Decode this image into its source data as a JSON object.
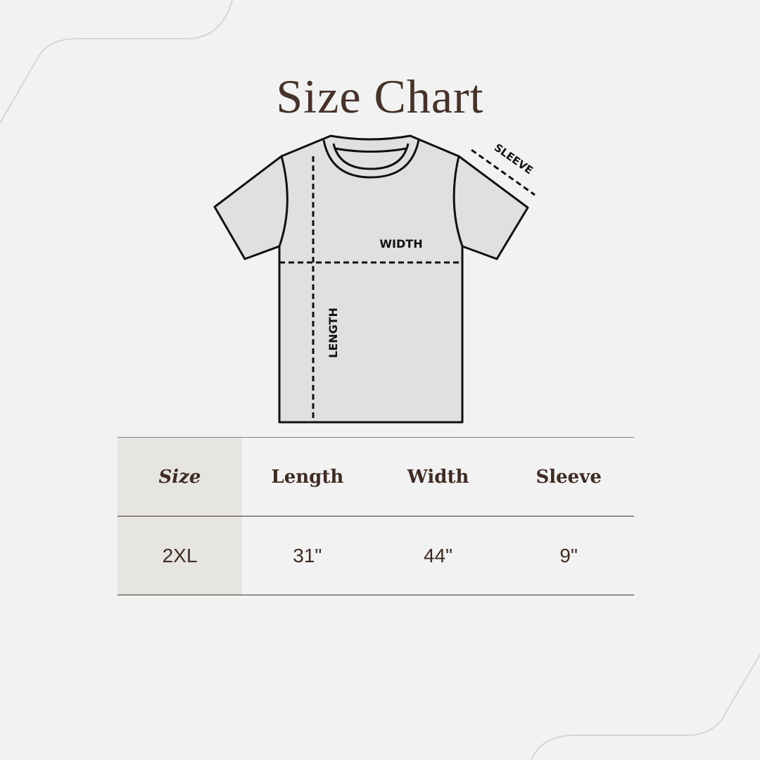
{
  "title": "Size Chart",
  "diagram": {
    "labels": {
      "sleeve": "SLEEVE",
      "width": "WIDTH",
      "length": "LENGTH"
    },
    "colors": {
      "shirt_fill": "#e0e0e0",
      "outline": "#111111"
    }
  },
  "table": {
    "headers": [
      "Size",
      "Length",
      "Width",
      "Sleeve"
    ],
    "rows": [
      [
        "2XL",
        "31\"",
        "44\"",
        "9\""
      ]
    ]
  },
  "colors": {
    "text": "#46322a",
    "background": "#f2f2f2",
    "size_column": "#e7e5e1"
  }
}
